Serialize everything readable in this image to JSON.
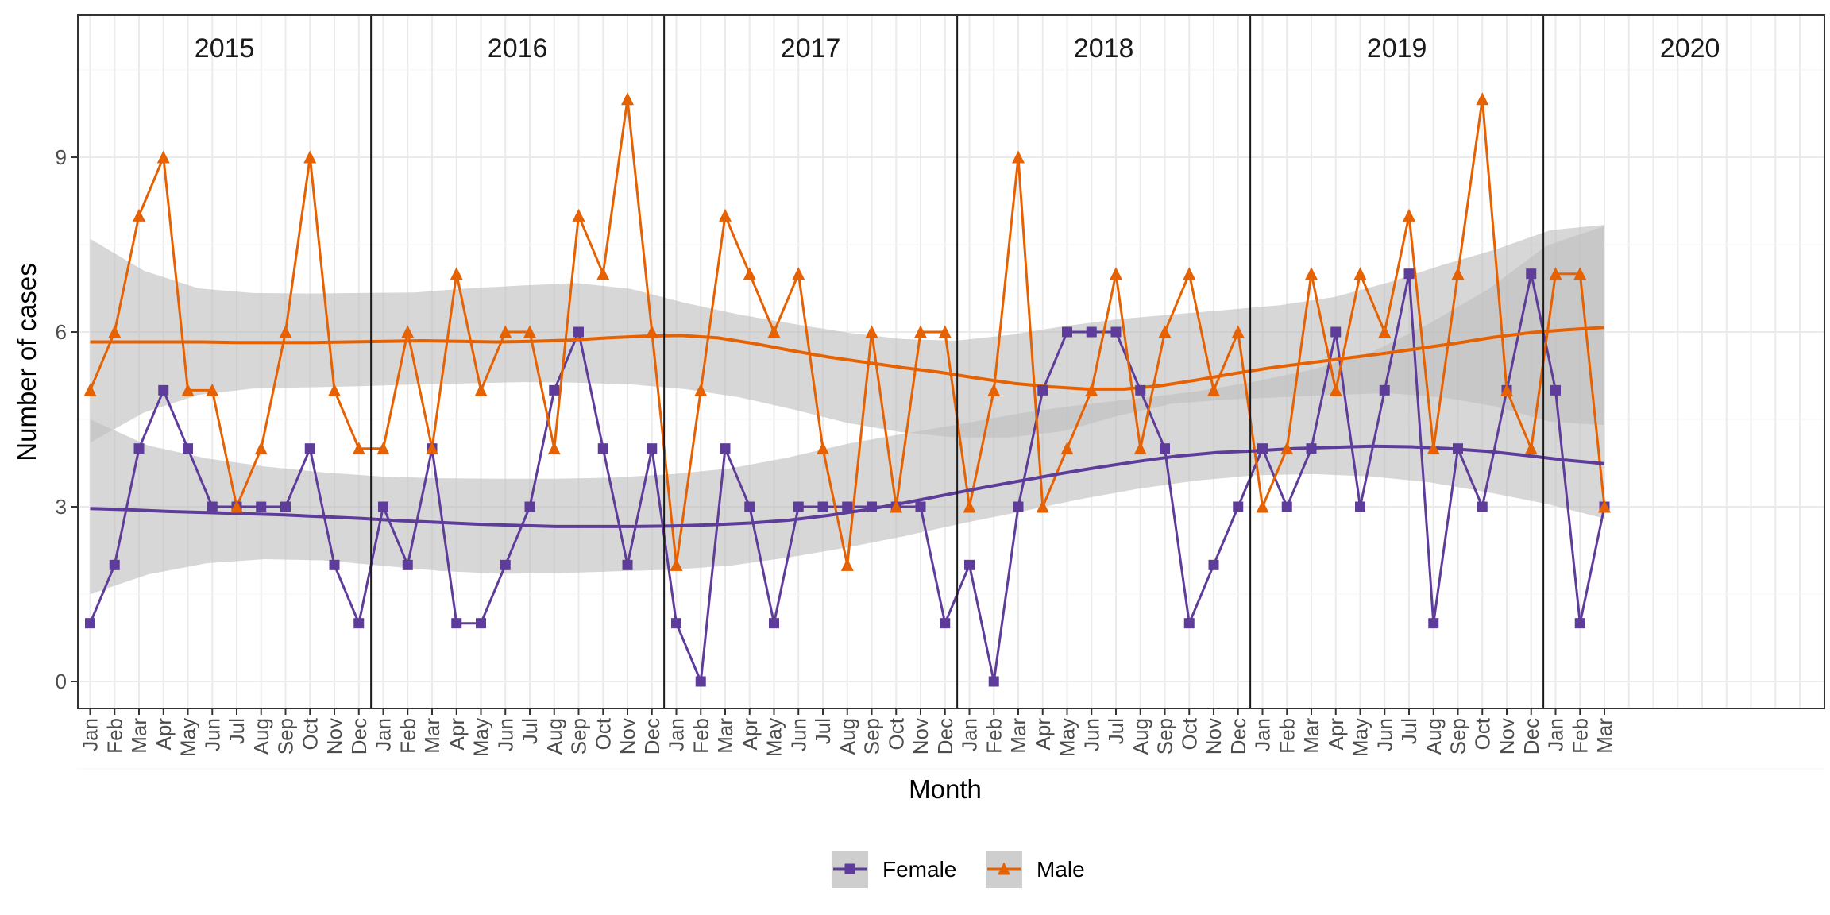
{
  "chart_data": {
    "type": "line",
    "xlabel": "Month",
    "ylabel": "Number of cases",
    "ylim": [
      -0.45,
      11.4
    ],
    "y_ticks": [
      0,
      3,
      6,
      9
    ],
    "grid": true,
    "legend_position": "bottom",
    "years": [
      "2015",
      "2016",
      "2017",
      "2018",
      "2019",
      "2020"
    ],
    "month_labels": [
      "Jan",
      "Feb",
      "Mar",
      "Apr",
      "May",
      "Jun",
      "Jul",
      "Aug",
      "Sep",
      "Oct",
      "Nov",
      "Dec"
    ],
    "colors": {
      "female": "#5e3c99",
      "male": "#e66101",
      "ribbon": "#bebebe"
    },
    "series": [
      {
        "key": "female",
        "name": "Female",
        "marker": "square",
        "color": "#5e3c99",
        "values": [
          1,
          2,
          4,
          5,
          4,
          3,
          3,
          3,
          3,
          4,
          2,
          1,
          3,
          2,
          4,
          1,
          1,
          2,
          3,
          5,
          6,
          4,
          2,
          4,
          1,
          0,
          4,
          3,
          1,
          3,
          3,
          3,
          3,
          3,
          3,
          1,
          2,
          0,
          3,
          5,
          6,
          6,
          6,
          5,
          4,
          1,
          2,
          3,
          4,
          3,
          4,
          6,
          3,
          5,
          7,
          1,
          4,
          3,
          5,
          7,
          5,
          1,
          3
        ],
        "smooth": [
          2.97,
          2.95,
          2.92,
          2.9,
          2.88,
          2.86,
          2.83,
          2.8,
          2.76,
          2.73,
          2.7,
          2.68,
          2.66,
          2.66,
          2.66,
          2.67,
          2.69,
          2.72,
          2.77,
          2.85,
          2.95,
          3.07,
          3.2,
          3.33,
          3.45,
          3.57,
          3.68,
          3.78,
          3.87,
          3.93,
          3.96,
          4,
          4.02,
          4.04,
          4.03,
          4,
          3.95,
          3.88,
          3.8,
          3.74
        ],
        "smooth_lower": [
          1.5,
          1.84,
          2.03,
          2.1,
          2.08,
          1.99,
          1.9,
          1.85,
          1.86,
          1.89,
          1.92,
          1.99,
          2.13,
          2.3,
          2.5,
          2.72,
          2.92,
          3.13,
          3.31,
          3.45,
          3.54,
          3.56,
          3.52,
          3.42,
          3.25,
          3.05,
          2.8
        ],
        "smooth_upper": [
          4.5,
          4.05,
          3.83,
          3.69,
          3.59,
          3.52,
          3.49,
          3.48,
          3.48,
          3.5,
          3.56,
          3.66,
          3.85,
          4.08,
          4.26,
          4.43,
          4.61,
          4.75,
          4.86,
          4.98,
          5.15,
          5.36,
          5.65,
          6.15,
          6.73,
          7.48,
          7.82
        ]
      },
      {
        "key": "male",
        "name": "Male",
        "marker": "triangle",
        "color": "#e66101",
        "values": [
          5,
          6,
          8,
          9,
          5,
          5,
          3,
          4,
          6,
          9,
          5,
          4,
          4,
          6,
          4,
          7,
          5,
          6,
          6,
          4,
          8,
          7,
          10,
          6,
          2,
          5,
          8,
          7,
          6,
          7,
          4,
          2,
          6,
          3,
          6,
          6,
          3,
          5,
          9,
          3,
          4,
          5,
          7,
          4,
          6,
          7,
          5,
          6,
          3,
          4,
          7,
          5,
          7,
          6,
          8,
          4,
          7,
          10,
          5,
          4,
          7,
          7,
          3
        ],
        "smooth": [
          5.83,
          5.83,
          5.83,
          5.83,
          5.82,
          5.82,
          5.82,
          5.83,
          5.84,
          5.85,
          5.84,
          5.83,
          5.84,
          5.86,
          5.9,
          5.93,
          5.94,
          5.9,
          5.8,
          5.68,
          5.57,
          5.48,
          5.39,
          5.31,
          5.21,
          5.12,
          5.06,
          5.02,
          5.02,
          5.08,
          5.18,
          5.29,
          5.39,
          5.47,
          5.55,
          5.63,
          5.72,
          5.81,
          5.91,
          5.99,
          6.04,
          6.08
        ],
        "smooth_lower": [
          4.1,
          4.62,
          4.92,
          5.03,
          5.05,
          5.07,
          5.1,
          5.12,
          5.14,
          5.13,
          5.1,
          5.02,
          4.88,
          4.67,
          4.44,
          4.28,
          4.19,
          4.19,
          4.3,
          4.56,
          4.77,
          4.84,
          4.88,
          4.92,
          4.95,
          4.88,
          4.72,
          4.46,
          4.4
        ],
        "smooth_upper": [
          7.6,
          7.05,
          6.75,
          6.67,
          6.66,
          6.67,
          6.68,
          6.75,
          6.8,
          6.84,
          6.74,
          6.5,
          6.3,
          6.14,
          5.99,
          5.88,
          5.85,
          5.95,
          6.1,
          6.22,
          6.3,
          6.38,
          6.46,
          6.6,
          6.85,
          7.15,
          7.42,
          7.75,
          7.84
        ]
      }
    ]
  }
}
